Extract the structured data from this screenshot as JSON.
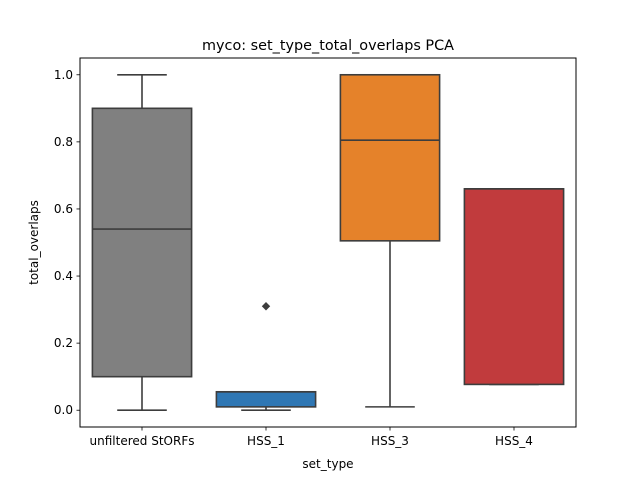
{
  "chart_data": {
    "type": "box",
    "title": "myco: set_type_total_overlaps PCA",
    "xlabel": "set_type",
    "ylabel": "total_overlaps",
    "ylim": [
      -0.05,
      1.05
    ],
    "yticks": [
      "0.0",
      "0.2",
      "0.4",
      "0.6",
      "0.8",
      "1.0"
    ],
    "grid": false,
    "categories": [
      "unfiltered StORFs",
      "HSS_1",
      "HSS_3",
      "HSS_4"
    ],
    "boxes": [
      {
        "category": "unfiltered StORFs",
        "color": "#808080",
        "whisker_low": 0.0,
        "q1": 0.1,
        "median": 0.54,
        "q3": 0.9,
        "whisker_high": 1.0,
        "outliers": []
      },
      {
        "category": "HSS_1",
        "color": "#2f77b4",
        "whisker_low": 0.0,
        "q1": 0.01,
        "median": 0.055,
        "q3": 0.055,
        "whisker_high": 0.055,
        "outliers": [
          0.31
        ]
      },
      {
        "category": "HSS_3",
        "color": "#e5822a",
        "whisker_low": 0.01,
        "q1": 0.505,
        "median": 0.805,
        "q3": 1.0,
        "whisker_high": 1.0,
        "outliers": []
      },
      {
        "category": "HSS_4",
        "color": "#c13b3d",
        "whisker_low": 0.077,
        "q1": 0.077,
        "median": 0.66,
        "q3": 0.66,
        "whisker_high": 0.66,
        "outliers": []
      }
    ]
  }
}
